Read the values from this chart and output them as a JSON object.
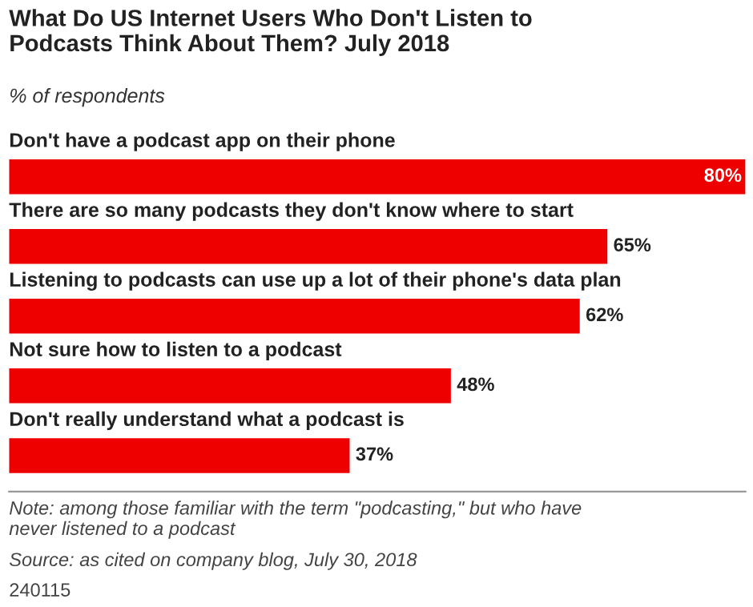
{
  "chart_data": {
    "type": "bar",
    "orientation": "horizontal",
    "title": "What Do US Internet Users Who Don't Listen to\nPodcasts Think About Them? July 2018",
    "subtitle": "% of respondents",
    "categories": [
      "Don't have a podcast app on their phone",
      "There are so many podcasts they don't know where to start",
      "Listening to podcasts can use up a lot of their phone's data plan",
      "Not sure how to listen to a podcast",
      "Don't really understand what a podcast is"
    ],
    "values": [
      80,
      65,
      62,
      48,
      37
    ],
    "value_labels": [
      "80%",
      "65%",
      "62%",
      "48%",
      "37%"
    ],
    "color": "#ee0000",
    "annotations": [
      "Note: among those familiar with the term \"podcasting,\" but who have\nnever listened to a podcast",
      "Source: as cited on company blog, July 30, 2018",
      "240115"
    ]
  }
}
